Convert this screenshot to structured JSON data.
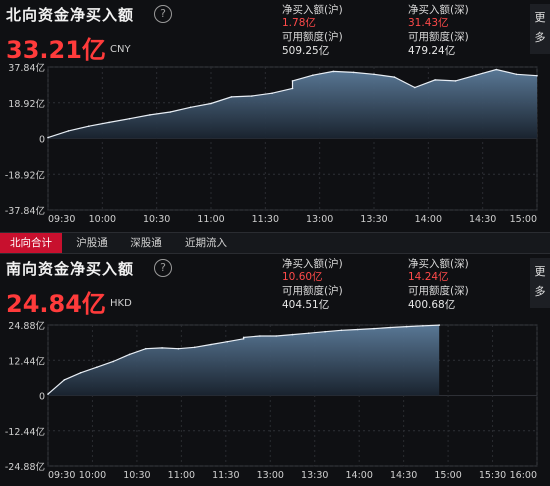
{
  "north": {
    "title": "北向资金净买入额",
    "amount": "33.21亿",
    "currency": "CNY",
    "sh_buy_label": "净买入额(沪)",
    "sh_buy_value": "1.78亿",
    "sz_buy_label": "净买入额(深)",
    "sz_buy_value": "31.43亿",
    "sh_quota_label": "可用额度(沪)",
    "sh_quota_value": "509.25亿",
    "sz_quota_label": "可用额度(深)",
    "sz_quota_value": "479.24亿",
    "more": "更多"
  },
  "tabs": [
    {
      "label": "北向合计",
      "active": true
    },
    {
      "label": "沪股通",
      "active": false
    },
    {
      "label": "深股通",
      "active": false
    },
    {
      "label": "近期流入",
      "active": false
    }
  ],
  "south": {
    "title": "南向资金净买入额",
    "amount": "24.84亿",
    "currency": "HKD",
    "sh_buy_label": "净买入额(沪)",
    "sh_buy_value": "10.60亿",
    "sz_buy_label": "净买入额(深)",
    "sz_buy_value": "14.24亿",
    "sh_quota_label": "可用额度(沪)",
    "sh_quota_value": "404.51亿",
    "sz_quota_label": "可用额度(深)",
    "sz_quota_value": "400.68亿",
    "more": "更多"
  },
  "colors": {
    "positive": "#ff3b3b",
    "area_top": "#5d7d9c",
    "area_bottom": "#1a2430",
    "line": "#e8eef5",
    "active_tab": "#c8102e"
  },
  "chart_data": [
    {
      "type": "area",
      "x_unit": "time",
      "yticks": [
        "37.84亿",
        "18.92亿",
        "0",
        "-18.92亿",
        "-37.84亿"
      ],
      "ylim": [
        -37.84,
        37.84
      ],
      "xticks": [
        "09:30",
        "10:00",
        "10:30",
        "11:00",
        "11:30",
        "13:00",
        "13:30",
        "14:00",
        "14:30",
        "15:00"
      ],
      "x": [
        "09:30",
        "09:40",
        "09:50",
        "10:00",
        "10:10",
        "10:20",
        "10:30",
        "10:40",
        "10:50",
        "11:00",
        "11:10",
        "11:20",
        "11:30",
        "13:00",
        "13:10",
        "13:20",
        "13:30",
        "13:40",
        "13:50",
        "14:00",
        "14:10",
        "14:20",
        "14:30",
        "14:40",
        "14:50",
        "15:00"
      ],
      "values": [
        0.5,
        4.0,
        6.5,
        8.5,
        10.5,
        12.5,
        14.0,
        16.5,
        18.5,
        22.0,
        22.5,
        24.0,
        26.5,
        30.5,
        33.5,
        35.5,
        35.0,
        34.0,
        32.5,
        27.0,
        31.0,
        30.5,
        33.5,
        36.5,
        34.0,
        33.21
      ]
    },
    {
      "type": "area",
      "x_unit": "time",
      "yticks": [
        "24.88亿",
        "12.44亿",
        "0",
        "-12.44亿",
        "-24.88亿"
      ],
      "ylim": [
        -24.88,
        24.88
      ],
      "xticks": [
        "09:30",
        "10:00",
        "10:30",
        "11:00",
        "11:30",
        "13:00",
        "13:30",
        "14:00",
        "14:30",
        "15:00",
        "15:30",
        "16:00"
      ],
      "x": [
        "09:30",
        "09:40",
        "09:50",
        "10:00",
        "10:10",
        "10:20",
        "10:30",
        "10:40",
        "10:50",
        "11:00",
        "11:10",
        "11:20",
        "11:30",
        "13:00",
        "13:10",
        "13:20",
        "13:30",
        "13:40",
        "13:50",
        "14:00",
        "14:10",
        "14:20",
        "14:30",
        "14:40",
        "14:50",
        "15:00"
      ],
      "values": [
        0.5,
        5.5,
        8.0,
        10.0,
        12.0,
        14.5,
        16.5,
        16.8,
        16.5,
        17.0,
        18.0,
        19.0,
        20.0,
        20.5,
        21.0,
        21.0,
        21.5,
        22.0,
        22.5,
        23.0,
        23.3,
        23.6,
        24.0,
        24.3,
        24.6,
        24.84
      ]
    }
  ]
}
